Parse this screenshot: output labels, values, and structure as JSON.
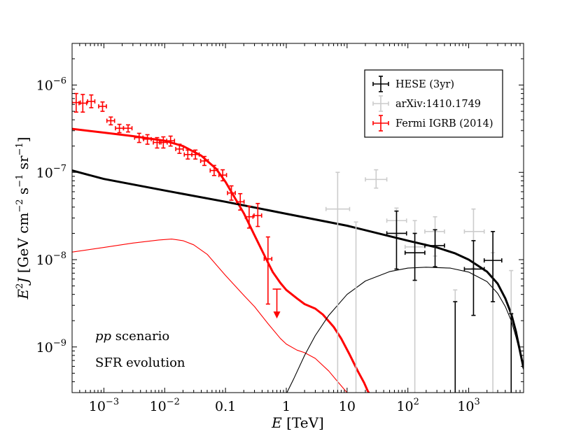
{
  "chart_data": {
    "type": "scatter",
    "xscale": "log",
    "yscale": "log",
    "xlim": [
      0.0003,
      8000
    ],
    "ylim": [
      3e-10,
      3e-06
    ],
    "xlabel": {
      "var": "E",
      "unit": "[TeV]"
    },
    "ylabel": {
      "var": "E",
      "sup": "2",
      "var2": "J",
      "unit_open": "[GeV cm",
      "exp1": "−2",
      "unit_s": " s",
      "exp2": "−1",
      "unit_sr": " sr",
      "exp3": "−1",
      "unit_close": "]"
    },
    "xticks": [
      {
        "v": 0.001,
        "base": "10",
        "exp": "−3"
      },
      {
        "v": 0.01,
        "base": "10",
        "exp": "−2"
      },
      {
        "v": 0.1,
        "text": "0.1"
      },
      {
        "v": 1,
        "text": "1"
      },
      {
        "v": 10,
        "text": "10"
      },
      {
        "v": 100,
        "base": "10",
        "exp": "2"
      },
      {
        "v": 1000,
        "base": "10",
        "exp": "3"
      }
    ],
    "yticks": [
      {
        "v": 1e-09,
        "base": "10",
        "exp": "−9"
      },
      {
        "v": 1e-08,
        "base": "10",
        "exp": "−8"
      },
      {
        "v": 1e-07,
        "base": "10",
        "exp": "−7"
      },
      {
        "v": 1e-06,
        "base": "10",
        "exp": "−6"
      }
    ],
    "legend": {
      "position": "upper-right",
      "entries": [
        {
          "label": "HESE (3yr)",
          "color": "#000000"
        },
        {
          "label": "arXiv:1410.1749",
          "color": "#cccccc"
        },
        {
          "label": "Fermi IGRB (2014)",
          "color": "#ff0000"
        }
      ]
    },
    "annotations": [
      {
        "italic": "pp",
        "text": " scenario"
      },
      {
        "text": "SFR evolution"
      }
    ],
    "series": [
      {
        "name": "Fermi IGRB (2014)",
        "color": "#ff0000",
        "points": [
          {
            "x": 0.00035,
            "y": 6.3e-07,
            "xlo": 0.0003,
            "xhi": 0.00041,
            "ylo": 4.9e-07,
            "yhi": 8e-07
          },
          {
            "x": 0.00045,
            "y": 6.2e-07,
            "xlo": 0.00039,
            "xhi": 0.00052,
            "ylo": 4.9e-07,
            "yhi": 7.8e-07
          },
          {
            "x": 0.00062,
            "y": 6.5e-07,
            "xlo": 0.00054,
            "xhi": 0.00071,
            "ylo": 5.5e-07,
            "yhi": 7.7e-07
          },
          {
            "x": 0.00095,
            "y": 5.7e-07,
            "xlo": 0.00082,
            "xhi": 0.0011,
            "ylo": 5e-07,
            "yhi": 6.4e-07
          },
          {
            "x": 0.0013,
            "y": 3.9e-07,
            "xlo": 0.00112,
            "xhi": 0.0015,
            "ylo": 3.5e-07,
            "yhi": 4.3e-07
          },
          {
            "x": 0.0018,
            "y": 3.2e-07,
            "xlo": 0.00155,
            "xhi": 0.0021,
            "ylo": 2.85e-07,
            "yhi": 3.55e-07
          },
          {
            "x": 0.0025,
            "y": 3.2e-07,
            "xlo": 0.0021,
            "xhi": 0.0029,
            "ylo": 2.9e-07,
            "yhi": 3.5e-07
          },
          {
            "x": 0.0038,
            "y": 2.5e-07,
            "xlo": 0.0032,
            "xhi": 0.0044,
            "ylo": 2.2e-07,
            "yhi": 2.8e-07
          },
          {
            "x": 0.0052,
            "y": 2.4e-07,
            "xlo": 0.0045,
            "xhi": 0.006,
            "ylo": 2.1e-07,
            "yhi": 2.7e-07
          },
          {
            "x": 0.0075,
            "y": 2.2e-07,
            "xlo": 0.0065,
            "xhi": 0.0087,
            "ylo": 1.9e-07,
            "yhi": 2.5e-07
          },
          {
            "x": 0.0095,
            "y": 2.2e-07,
            "xlo": 0.0082,
            "xhi": 0.011,
            "ylo": 1.9e-07,
            "yhi": 2.55e-07
          },
          {
            "x": 0.0125,
            "y": 2.3e-07,
            "xlo": 0.0108,
            "xhi": 0.0145,
            "ylo": 2e-07,
            "yhi": 2.6e-07
          },
          {
            "x": 0.0175,
            "y": 1.85e-07,
            "xlo": 0.0152,
            "xhi": 0.0202,
            "ylo": 1.65e-07,
            "yhi": 2.1e-07
          },
          {
            "x": 0.024,
            "y": 1.6e-07,
            "xlo": 0.021,
            "xhi": 0.028,
            "ylo": 1.42e-07,
            "yhi": 1.8e-07
          },
          {
            "x": 0.032,
            "y": 1.6e-07,
            "xlo": 0.028,
            "xhi": 0.037,
            "ylo": 1.42e-07,
            "yhi": 1.8e-07
          },
          {
            "x": 0.045,
            "y": 1.35e-07,
            "xlo": 0.039,
            "xhi": 0.052,
            "ylo": 1.2e-07,
            "yhi": 1.52e-07
          },
          {
            "x": 0.065,
            "y": 1.05e-07,
            "xlo": 0.056,
            "xhi": 0.075,
            "ylo": 9.2e-08,
            "yhi": 1.2e-07
          },
          {
            "x": 0.09,
            "y": 9.3e-08,
            "xlo": 0.078,
            "xhi": 0.104,
            "ylo": 8e-08,
            "yhi": 1.07e-07
          },
          {
            "x": 0.125,
            "y": 5.8e-08,
            "xlo": 0.108,
            "xhi": 0.145,
            "ylo": 4.8e-08,
            "yhi": 7e-08
          },
          {
            "x": 0.175,
            "y": 4.6e-08,
            "xlo": 0.152,
            "xhi": 0.202,
            "ylo": 3.7e-08,
            "yhi": 5.7e-08
          },
          {
            "x": 0.245,
            "y": 3.1e-08,
            "xlo": 0.212,
            "xhi": 0.283,
            "ylo": 2.3e-08,
            "yhi": 4.1e-08
          },
          {
            "x": 0.34,
            "y": 3.2e-08,
            "xlo": 0.295,
            "xhi": 0.393,
            "ylo": 2.4e-08,
            "yhi": 4.4e-08
          },
          {
            "x": 0.5,
            "y": 1.02e-08,
            "xlo": 0.433,
            "xhi": 0.578,
            "ylo": 3.1e-09,
            "yhi": 1.82e-08
          }
        ],
        "upper_limits": [
          {
            "x": 0.7,
            "y": 4.6e-09
          }
        ]
      },
      {
        "name": "arXiv:1410.1749",
        "color": "#cccccc",
        "points": [
          {
            "x": 7,
            "y": 3.8e-08,
            "xlo": 4.5,
            "xhi": 11,
            "ylo": 3e-10,
            "yhi": 1e-07
          },
          {
            "x": 30,
            "y": 8.3e-08,
            "xlo": 20,
            "xhi": 45,
            "ylo": 6.6e-08,
            "yhi": 1.07e-07
          },
          {
            "x": 65,
            "y": 2.8e-08,
            "xlo": 45,
            "xhi": 95,
            "ylo": 1.9e-08,
            "yhi": 3.9e-08
          },
          {
            "x": 14,
            "y": 2.7e-08,
            "ylo": 3e-10,
            "yhi": 2.7e-08
          },
          {
            "x": 130,
            "y": 1.4e-08,
            "xlo": 90,
            "xhi": 190,
            "ylo": 3e-10,
            "yhi": 2.8e-08
          },
          {
            "x": 280,
            "y": 2.1e-08,
            "xlo": 190,
            "xhi": 400,
            "ylo": 1.1e-08,
            "yhi": 3.1e-08
          },
          {
            "x": 600,
            "y": 4.5e-09,
            "ylo": 3e-10,
            "yhi": 4.5e-09
          },
          {
            "x": 1200,
            "y": 2.1e-08,
            "xlo": 850,
            "xhi": 1800,
            "ylo": 8e-09,
            "yhi": 3.8e-08
          },
          {
            "x": 2500,
            "y": 1.2e-08,
            "ylo": 3e-10,
            "yhi": 1.2e-08
          },
          {
            "x": 5000,
            "y": 7.5e-09,
            "ylo": 3e-10,
            "yhi": 7.5e-09
          }
        ]
      },
      {
        "name": "HESE (3yr)",
        "color": "#000000",
        "points": [
          {
            "x": 65,
            "y": 2e-08,
            "xlo": 45,
            "xhi": 95,
            "ylo": 7.8e-09,
            "yhi": 3.6e-08
          },
          {
            "x": 130,
            "y": 1.2e-08,
            "xlo": 90,
            "xhi": 190,
            "ylo": 5.8e-09,
            "yhi": 2e-08
          },
          {
            "x": 280,
            "y": 1.45e-08,
            "xlo": 190,
            "xhi": 400,
            "ylo": 8.3e-09,
            "yhi": 2.2e-08
          },
          {
            "x": 600,
            "y": 3.3e-09,
            "ylo": 3e-10,
            "yhi": 3.3e-09
          },
          {
            "x": 1200,
            "y": 7.8e-09,
            "xlo": 850,
            "xhi": 1800,
            "ylo": 2.3e-09,
            "yhi": 1.65e-08
          },
          {
            "x": 2500,
            "y": 9.8e-09,
            "xlo": 1800,
            "xhi": 3500,
            "ylo": 3.3e-09,
            "yhi": 2.1e-08
          },
          {
            "x": 5000,
            "y": 2.4e-09,
            "ylo": 3e-10,
            "yhi": 2.4e-09
          }
        ]
      }
    ],
    "curves": [
      {
        "name": "gamma-ray total (thick red)",
        "color": "#ff0000",
        "width": 3,
        "points": [
          [
            0.0003,
            3.15e-07
          ],
          [
            0.001,
            2.85e-07
          ],
          [
            0.003,
            2.6e-07
          ],
          [
            0.01,
            2.3e-07
          ],
          [
            0.02,
            2e-07
          ],
          [
            0.04,
            1.55e-07
          ],
          [
            0.07,
            1.1e-07
          ],
          [
            0.1,
            7.8e-08
          ],
          [
            0.15,
            4.8e-08
          ],
          [
            0.2,
            3.4e-08
          ],
          [
            0.3,
            1.9e-08
          ],
          [
            0.45,
            1.07e-08
          ],
          [
            0.6,
            7.2e-09
          ],
          [
            0.8,
            5.4e-09
          ],
          [
            1.0,
            4.5e-09
          ],
          [
            1.5,
            3.6e-09
          ],
          [
            2.0,
            3.1e-09
          ],
          [
            3.0,
            2.75e-09
          ],
          [
            4.0,
            2.35e-09
          ],
          [
            6.0,
            1.7e-09
          ],
          [
            8.0,
            1.25e-09
          ],
          [
            11.0,
            8.2e-10
          ],
          [
            15.0,
            5.3e-10
          ],
          [
            19.0,
            3.9e-10
          ],
          [
            22.0,
            3.1e-10
          ],
          [
            23.5,
            2.9e-10
          ]
        ]
      },
      {
        "name": "gamma-ray component (thin red)",
        "color": "#ff0000",
        "width": 1.1,
        "points": [
          [
            0.0003,
            1.22e-08
          ],
          [
            0.001,
            1.38e-08
          ],
          [
            0.003,
            1.55e-08
          ],
          [
            0.008,
            1.68e-08
          ],
          [
            0.013,
            1.72e-08
          ],
          [
            0.02,
            1.65e-08
          ],
          [
            0.03,
            1.48e-08
          ],
          [
            0.05,
            1.15e-08
          ],
          [
            0.1,
            6.6e-09
          ],
          [
            0.2,
            3.9e-09
          ],
          [
            0.3,
            2.9e-09
          ],
          [
            0.5,
            1.85e-09
          ],
          [
            0.8,
            1.25e-09
          ],
          [
            1.0,
            1.08e-09
          ],
          [
            1.5,
            9.2e-10
          ],
          [
            2.0,
            8.6e-10
          ],
          [
            3.0,
            7.4e-10
          ],
          [
            5.0,
            5.3e-10
          ],
          [
            7.0,
            4e-10
          ],
          [
            10.0,
            3e-10
          ],
          [
            11.5,
            2.9e-10
          ]
        ]
      },
      {
        "name": "neutrino total (thick black)",
        "color": "#000000",
        "width": 3,
        "points": [
          [
            0.0003,
            1.05e-07
          ],
          [
            0.001,
            8.4e-08
          ],
          [
            0.01,
            6.2e-08
          ],
          [
            0.1,
            4.6e-08
          ],
          [
            1.0,
            3.35e-08
          ],
          [
            10.0,
            2.45e-08
          ],
          [
            100.0,
            1.65e-08
          ],
          [
            300.0,
            1.38e-08
          ],
          [
            600.0,
            1.18e-08
          ],
          [
            1000.0,
            1e-08
          ],
          [
            2000.0,
            7.3e-09
          ],
          [
            3000.0,
            5.3e-09
          ],
          [
            4000.0,
            3.6e-09
          ],
          [
            5000.0,
            2.4e-09
          ],
          [
            6000.0,
            1.5e-09
          ],
          [
            7000.0,
            8.8e-10
          ],
          [
            8000.0,
            5.7e-10
          ]
        ]
      },
      {
        "name": "neutrino component (thin black)",
        "color": "#000000",
        "width": 1.1,
        "points": [
          [
            1.0,
            2.9e-10
          ],
          [
            1.3,
            4.2e-10
          ],
          [
            2.0,
            8e-10
          ],
          [
            3.0,
            1.35e-09
          ],
          [
            5.0,
            2.3e-09
          ],
          [
            10.0,
            4e-09
          ],
          [
            20.0,
            5.7e-09
          ],
          [
            50.0,
            7.3e-09
          ],
          [
            100.0,
            8e-09
          ],
          [
            200.0,
            8.2e-09
          ],
          [
            500.0,
            8e-09
          ],
          [
            1000.0,
            7.2e-09
          ],
          [
            2000.0,
            5.6e-09
          ],
          [
            3000.0,
            4.1e-09
          ],
          [
            4000.0,
            2.9e-09
          ],
          [
            5000.0,
            2e-09
          ],
          [
            6000.0,
            1.3e-09
          ],
          [
            7000.0,
            8.4e-10
          ],
          [
            8000.0,
            5.5e-10
          ]
        ]
      }
    ]
  }
}
